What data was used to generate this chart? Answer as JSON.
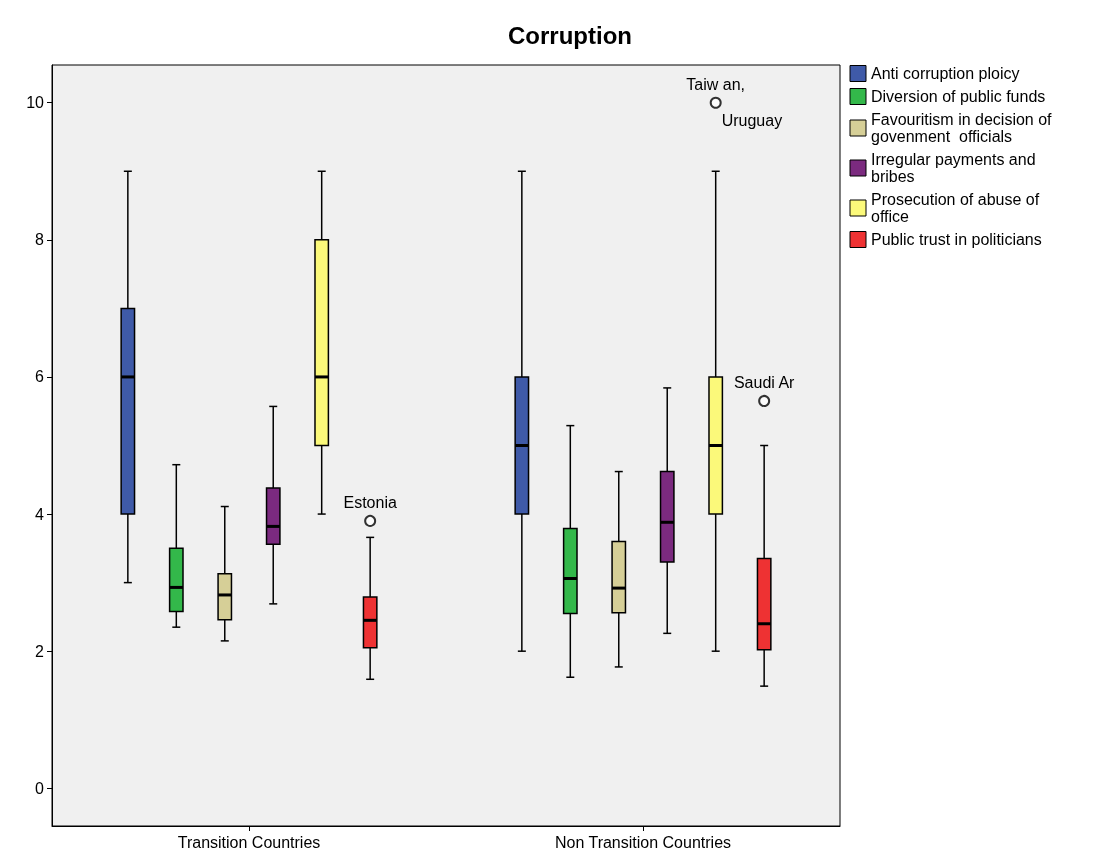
{
  "chart_data": {
    "type": "box",
    "title": "Corruption",
    "categories": [
      "Transition Countries",
      "Non Transition Countries"
    ],
    "ylim": [
      -0.55,
      10.55
    ],
    "yticks": [
      0,
      2,
      4,
      6,
      8,
      10
    ],
    "legend": "top right",
    "series": [
      {
        "name": "Anti corruption ploicy",
        "color": "#3f5aa8",
        "boxes": [
          {
            "low": 3,
            "q1": 4,
            "median": 6,
            "q3": 7,
            "high": 9
          },
          {
            "low": 2,
            "q1": 4,
            "median": 5,
            "q3": 6,
            "high": 9
          }
        ]
      },
      {
        "name": "Diversion of public funds",
        "color": "#33b84a",
        "boxes": [
          {
            "low": 2.35,
            "q1": 2.58,
            "median": 2.93,
            "q3": 3.5,
            "high": 4.72
          },
          {
            "low": 1.62,
            "q1": 2.55,
            "median": 3.06,
            "q3": 3.79,
            "high": 5.29
          }
        ]
      },
      {
        "name": "Favouritism in decision of govenment  officials",
        "color": "#d6cf97",
        "boxes": [
          {
            "low": 2.15,
            "q1": 2.46,
            "median": 2.82,
            "q3": 3.13,
            "high": 4.11
          },
          {
            "low": 1.77,
            "q1": 2.56,
            "median": 2.92,
            "q3": 3.6,
            "high": 4.62
          }
        ]
      },
      {
        "name": "Irregular payments and bribes",
        "color": "#7b2a7f",
        "boxes": [
          {
            "low": 2.69,
            "q1": 3.56,
            "median": 3.82,
            "q3": 4.38,
            "high": 5.57
          },
          {
            "low": 2.26,
            "q1": 3.3,
            "median": 3.88,
            "q3": 4.62,
            "high": 5.84
          }
        ]
      },
      {
        "name": "Prosecution of abuse of office",
        "color": "#fbf97a",
        "boxes": [
          {
            "low": 4,
            "q1": 5,
            "median": 6,
            "q3": 8,
            "high": 9
          },
          {
            "low": 2,
            "q1": 4,
            "median": 5,
            "q3": 6,
            "high": 9,
            "outliers": [
              10
            ]
          }
        ]
      },
      {
        "name": "Public trust in politicians",
        "color": "#ee3233",
        "boxes": [
          {
            "low": 1.59,
            "q1": 2.05,
            "median": 2.45,
            "q3": 2.79,
            "high": 3.66,
            "outliers": [
              3.9
            ]
          },
          {
            "low": 1.49,
            "q1": 2.02,
            "median": 2.4,
            "q3": 3.35,
            "high": 5.0,
            "outliers": [
              5.65
            ]
          }
        ]
      }
    ],
    "annotations": [
      "Estonia",
      "Taiw an,",
      "Uruguay",
      "Saudi Ar"
    ]
  }
}
